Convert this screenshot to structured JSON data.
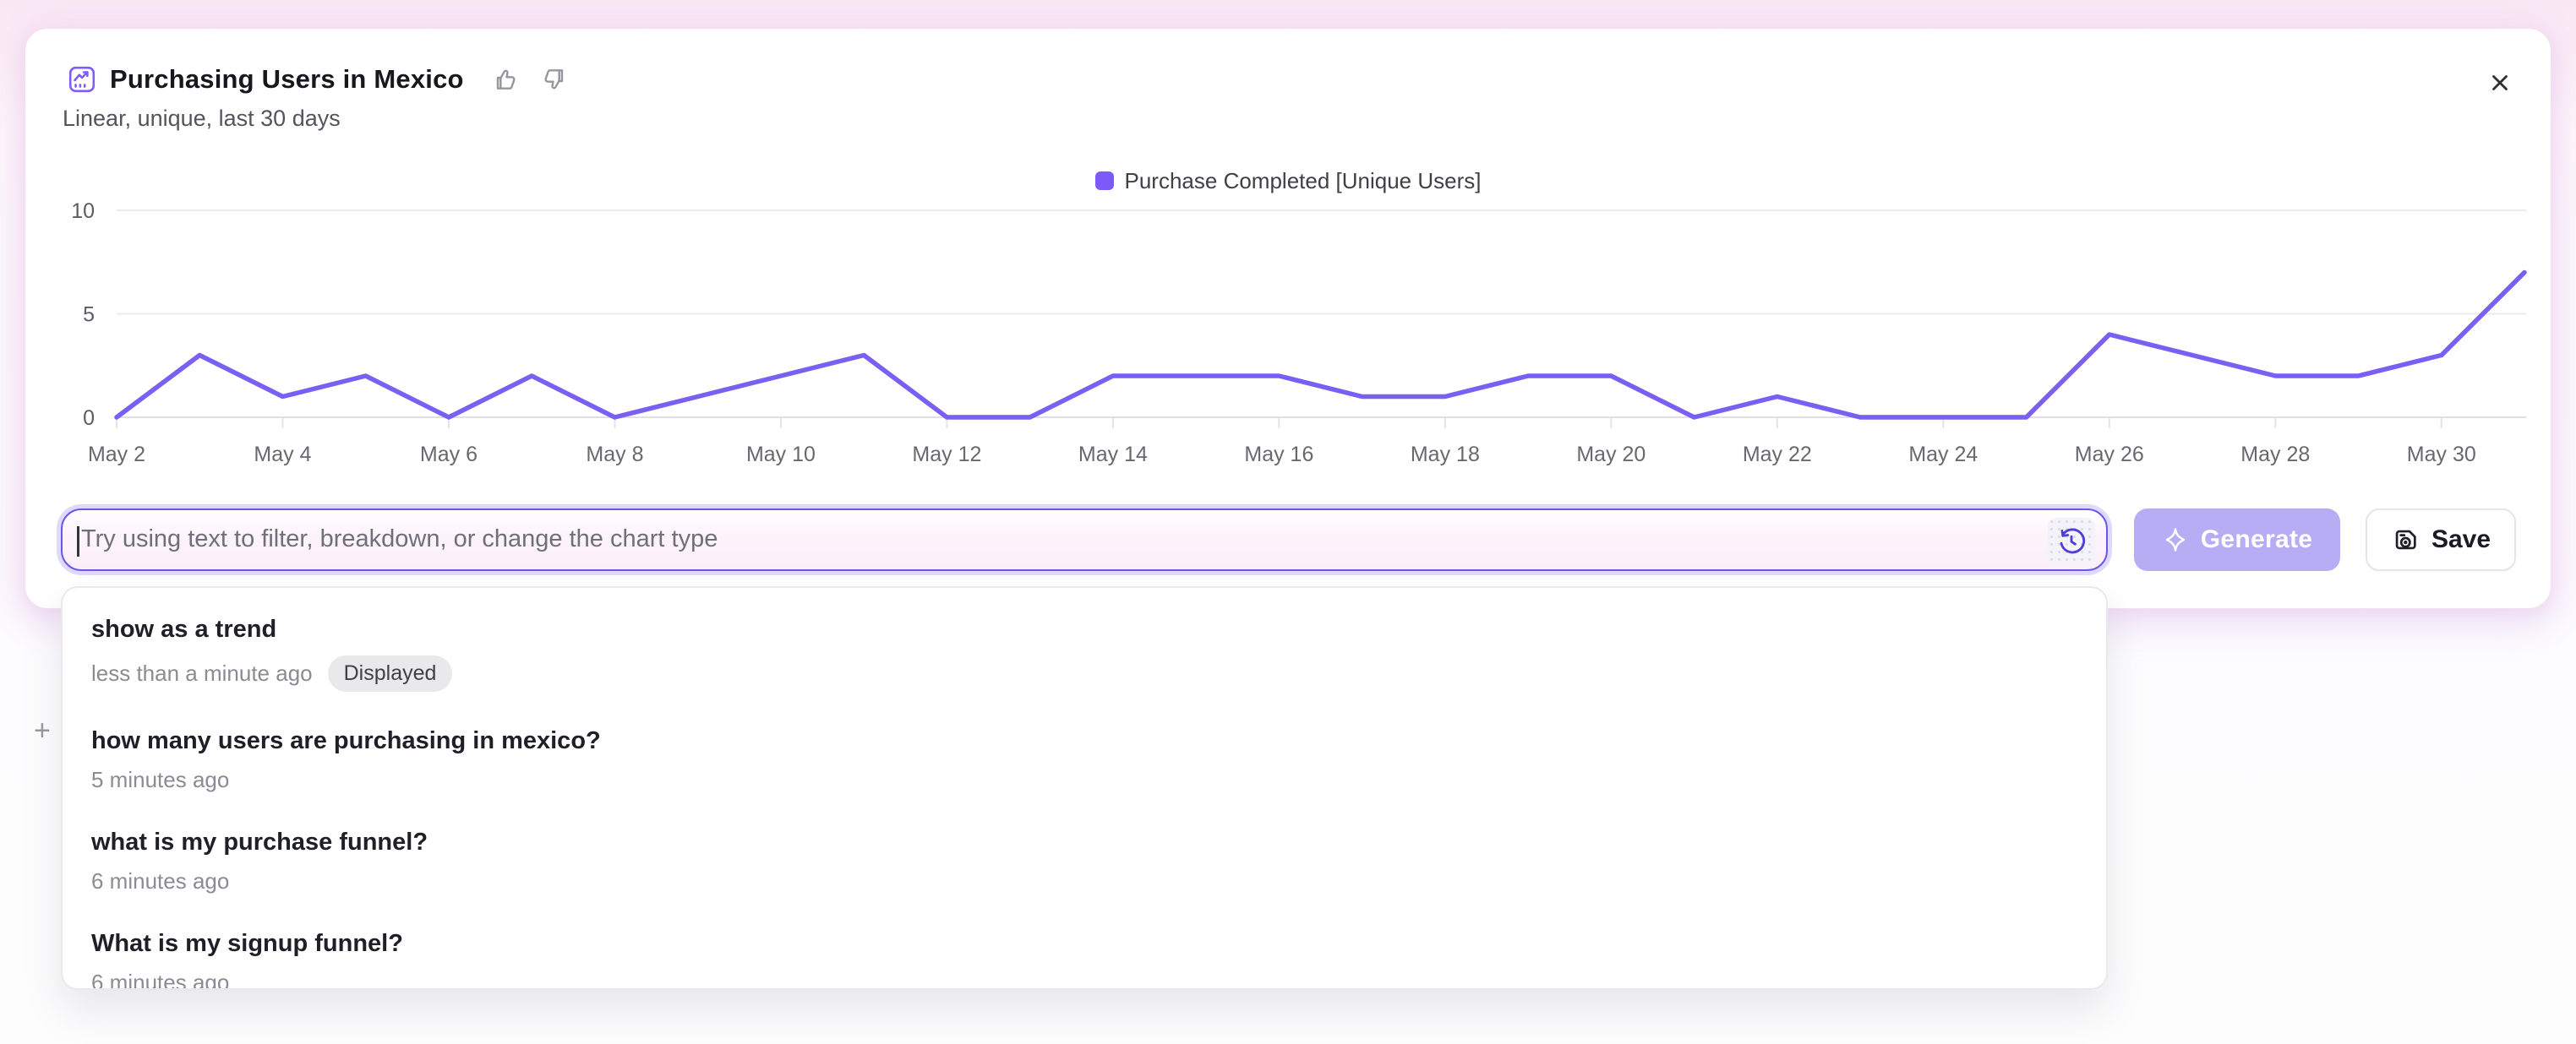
{
  "colors": {
    "accent_purple": "#6A58E8",
    "line_purple": "#7A5FF3",
    "legend_swatch": "#7B5AF9",
    "generate_fill": "#B7ADF4",
    "glow_pink": "#F8E3F2"
  },
  "header": {
    "title": "Purchasing Users in Mexico",
    "subtitle": "Linear, unique, last 30 days"
  },
  "legend": {
    "label": "Purchase Completed [Unique Users]",
    "color": "#7B5AF9"
  },
  "chart_data": {
    "type": "line",
    "title": "Purchasing Users in Mexico",
    "x": [
      "May 2",
      "May 3",
      "May 4",
      "May 5",
      "May 6",
      "May 7",
      "May 8",
      "May 9",
      "May 10",
      "May 11",
      "May 12",
      "May 13",
      "May 14",
      "May 15",
      "May 16",
      "May 17",
      "May 18",
      "May 19",
      "May 20",
      "May 21",
      "May 22",
      "May 23",
      "May 24",
      "May 25",
      "May 26",
      "May 27",
      "May 28",
      "May 29",
      "May 30",
      "May 31"
    ],
    "series": [
      {
        "name": "Purchase Completed [Unique Users]",
        "color": "#7A5FF3",
        "values": [
          0,
          3,
          1,
          2,
          0,
          2,
          0,
          1,
          2,
          3,
          0,
          0,
          2,
          2,
          2,
          1,
          1,
          2,
          2,
          0,
          1,
          0,
          0,
          0,
          4,
          3,
          2,
          2,
          3,
          7
        ]
      }
    ],
    "xlabel": "",
    "ylabel": "",
    "ylim": [
      0,
      10
    ],
    "yticks": [
      0,
      5,
      10
    ],
    "x_tick_step": 2,
    "grid": "horizontal",
    "legend_position": "top-center"
  },
  "prompt_bar": {
    "value": "",
    "placeholder": "Try using text to filter, breakdown, or change the chart type"
  },
  "actions": {
    "generate_label": "Generate",
    "save_label": "Save"
  },
  "history": {
    "items": [
      {
        "query": "show as a trend",
        "time": "less than a minute ago",
        "badge": "Displayed"
      },
      {
        "query": "how many users are purchasing in mexico?",
        "time": "5 minutes ago",
        "badge": ""
      },
      {
        "query": "what is my purchase funnel?",
        "time": "6 minutes ago",
        "badge": ""
      },
      {
        "query": "What is my signup funnel?",
        "time": "6 minutes ago",
        "badge": ""
      }
    ]
  }
}
